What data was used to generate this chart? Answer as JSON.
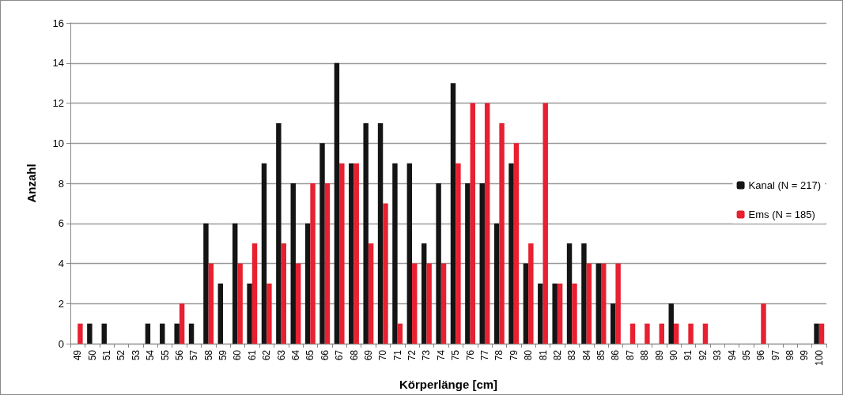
{
  "chart_data": {
    "type": "bar",
    "xlabel": "Körperlänge [cm]",
    "ylabel": "Anzahl",
    "categories": [
      "49",
      "50",
      "51",
      "52",
      "53",
      "54",
      "55",
      "56",
      "57",
      "58",
      "59",
      "60",
      "61",
      "62",
      "63",
      "64",
      "65",
      "66",
      "67",
      "68",
      "69",
      "70",
      "71",
      "72",
      "73",
      "74",
      "75",
      "76",
      "77",
      "78",
      "79",
      "80",
      "81",
      "82",
      "83",
      "84",
      "85",
      "86",
      "87",
      "88",
      "89",
      "90",
      "91",
      "92",
      "93",
      "94",
      "95",
      "96",
      "97",
      "98",
      "99",
      "100"
    ],
    "series": [
      {
        "name": "Kanal (N = 217)",
        "color": "#141414",
        "values": [
          0,
          1,
          1,
          0,
          0,
          1,
          1,
          1,
          1,
          6,
          3,
          6,
          3,
          9,
          11,
          8,
          6,
          10,
          14,
          9,
          11,
          11,
          9,
          9,
          5,
          8,
          13,
          8,
          8,
          6,
          9,
          4,
          3,
          3,
          5,
          5,
          4,
          2,
          0,
          0,
          0,
          2,
          0,
          0,
          0,
          0,
          0,
          0,
          0,
          0,
          0,
          1
        ]
      },
      {
        "name": "Ems (N = 185)",
        "color": "#e8202f",
        "values": [
          1,
          0,
          0,
          0,
          0,
          0,
          0,
          2,
          0,
          4,
          0,
          4,
          5,
          3,
          5,
          4,
          8,
          8,
          9,
          9,
          5,
          7,
          1,
          4,
          4,
          4,
          9,
          12,
          12,
          11,
          10,
          5,
          12,
          3,
          3,
          4,
          4,
          4,
          1,
          1,
          1,
          1,
          1,
          1,
          0,
          0,
          0,
          2,
          0,
          0,
          0,
          1
        ]
      }
    ],
    "ylim": [
      0,
      16
    ],
    "yticks": [
      0,
      2,
      4,
      6,
      8,
      10,
      12,
      14,
      16
    ],
    "grid": "y",
    "legend": "right"
  }
}
